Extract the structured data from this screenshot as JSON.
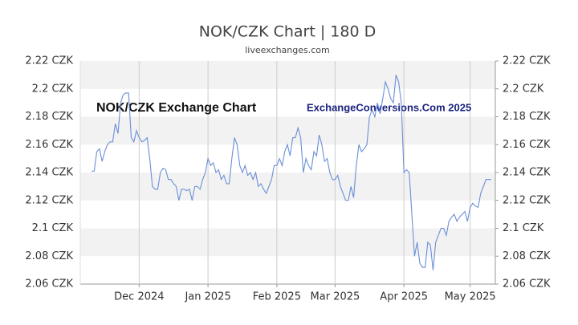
{
  "chart_data": {
    "type": "line",
    "title": "NOK/CZK Chart | 180 D",
    "subtitle": "liveexchanges.com",
    "annotations": [
      "NOK/CZK Exchange Chart",
      "ExchangeConversions.Com 2025"
    ],
    "categories": [
      null,
      null,
      null,
      null,
      null,
      null,
      null,
      null,
      null,
      null,
      null,
      null,
      null,
      null,
      null,
      null,
      null,
      null,
      "Dec 2024",
      null,
      null,
      null,
      null,
      null,
      null,
      null,
      null,
      null,
      null,
      null,
      null,
      null,
      null,
      null,
      null,
      null,
      null,
      null,
      null,
      null,
      null,
      null,
      null,
      null,
      "Jan 2025",
      null,
      null,
      null,
      null,
      null,
      null,
      null,
      null,
      null,
      null,
      null,
      null,
      null,
      null,
      null,
      null,
      null,
      null,
      null,
      null,
      null,
      null,
      null,
      null,
      null,
      "Feb 2025",
      null,
      null,
      null,
      null,
      null,
      null,
      null,
      null,
      null,
      null,
      null,
      null,
      null,
      null,
      null,
      null,
      null,
      null,
      null,
      null,
      null,
      "Mar 2025",
      null,
      null,
      null,
      null,
      null,
      null,
      null,
      null,
      null,
      null,
      null,
      null,
      null,
      null,
      null,
      null,
      null,
      null,
      null,
      null,
      null,
      null,
      null,
      null,
      null,
      "Apr 2025",
      null,
      null,
      null,
      null,
      null,
      null,
      null,
      null,
      null,
      null,
      null,
      null,
      null,
      null,
      null,
      null,
      null,
      null,
      null,
      null,
      null,
      null,
      null,
      null,
      "May 2025",
      null,
      null,
      null,
      null,
      null,
      null,
      null,
      null
    ],
    "series": [
      {
        "name": "NOK/CZK",
        "color": "#6a8fd8",
        "values": [
          2.141,
          2.141,
          2.155,
          2.157,
          2.148,
          2.155,
          2.16,
          2.162,
          2.162,
          2.175,
          2.168,
          2.19,
          2.196,
          2.197,
          2.197,
          2.165,
          2.162,
          2.17,
          2.165,
          2.162,
          2.163,
          2.165,
          2.15,
          2.13,
          2.128,
          2.128,
          2.14,
          2.143,
          2.142,
          2.135,
          2.135,
          2.132,
          2.13,
          2.12,
          2.128,
          2.128,
          2.127,
          2.128,
          2.12,
          2.13,
          2.13,
          2.128,
          2.135,
          2.14,
          2.15,
          2.145,
          2.147,
          2.14,
          2.142,
          2.135,
          2.138,
          2.132,
          2.132,
          2.15,
          2.165,
          2.16,
          2.145,
          2.14,
          2.145,
          2.138,
          2.14,
          2.135,
          2.14,
          2.13,
          2.132,
          2.128,
          2.125,
          2.13,
          2.135,
          2.145,
          2.145,
          2.15,
          2.145,
          2.155,
          2.16,
          2.152,
          2.165,
          2.165,
          2.172,
          2.165,
          2.14,
          2.15,
          2.145,
          2.142,
          2.155,
          2.152,
          2.167,
          2.16,
          2.148,
          2.15,
          2.14,
          2.135,
          2.135,
          2.138,
          2.13,
          2.125,
          2.12,
          2.12,
          2.13,
          2.122,
          2.145,
          2.16,
          2.155,
          2.157,
          2.16,
          2.18,
          2.185,
          2.18,
          2.19,
          2.182,
          2.193,
          2.205,
          2.2,
          2.193,
          2.19,
          2.21,
          2.205,
          2.19,
          2.14,
          2.142,
          2.14,
          2.11,
          2.08,
          2.09,
          2.075,
          2.072,
          2.072,
          2.09,
          2.088,
          2.07,
          2.09,
          2.095,
          2.1,
          2.1,
          2.095,
          2.105,
          2.108,
          2.11,
          2.105,
          2.108,
          2.11,
          2.112,
          2.105,
          2.115,
          2.118,
          2.116,
          2.115,
          2.125,
          2.13,
          2.135,
          2.135,
          2.135
        ]
      }
    ],
    "ylim": [
      2.06,
      2.22
    ],
    "yticks": [
      {
        "value": 2.06,
        "label": "2.06 CZK"
      },
      {
        "value": 2.08,
        "label": "2.08 CZK"
      },
      {
        "value": 2.1,
        "label": "2.1 CZK"
      },
      {
        "value": 2.12,
        "label": "2.12 CZK"
      },
      {
        "value": 2.14,
        "label": "2.14 CZK"
      },
      {
        "value": 2.16,
        "label": "2.16 CZK"
      },
      {
        "value": 2.18,
        "label": "2.18 CZK"
      },
      {
        "value": 2.2,
        "label": "2.2 CZK"
      },
      {
        "value": 2.22,
        "label": "2.22 CZK"
      }
    ],
    "grid": true
  }
}
